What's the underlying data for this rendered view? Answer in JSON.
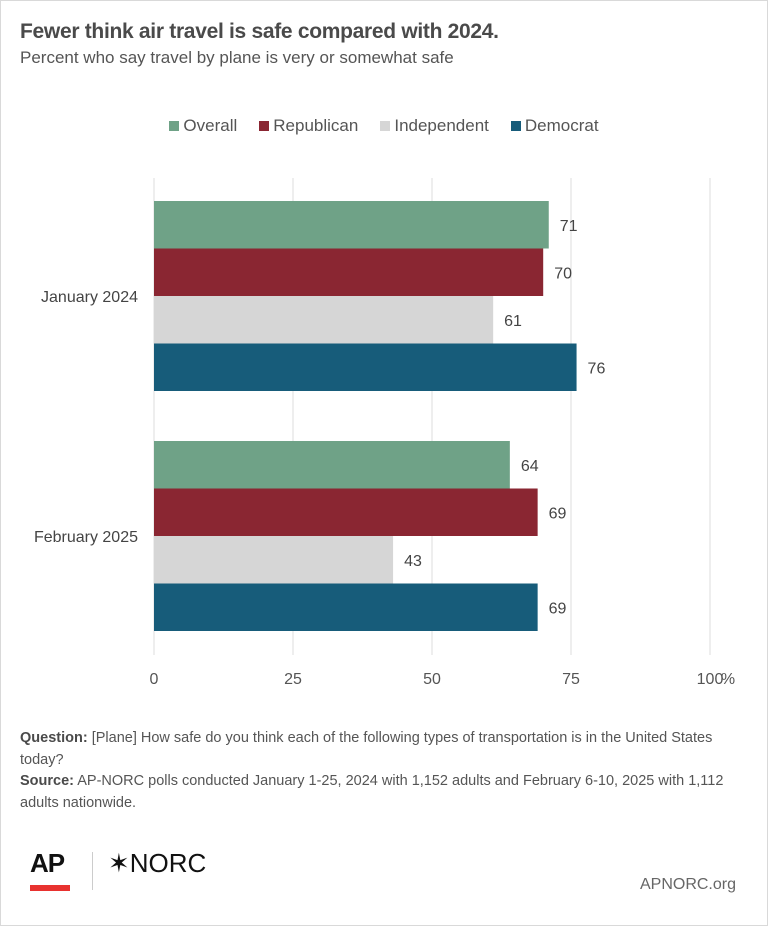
{
  "title": "Fewer think air travel is safe compared with 2024.",
  "subtitle": "Percent who say travel by plane is very or somewhat safe",
  "chart_data": {
    "type": "bar",
    "orientation": "horizontal",
    "categories": [
      "January 2024",
      "February 2025"
    ],
    "series": [
      {
        "name": "Overall",
        "color": "#6fa287",
        "values": [
          71,
          64
        ]
      },
      {
        "name": "Republican",
        "color": "#8a2632",
        "values": [
          70,
          69
        ]
      },
      {
        "name": "Independent",
        "color": "#d6d6d6",
        "values": [
          61,
          43
        ]
      },
      {
        "name": "Democrat",
        "color": "#175c7a",
        "values": [
          76,
          69
        ]
      }
    ],
    "xlim": [
      0,
      100
    ],
    "xticks": [
      "0",
      "25",
      "50",
      "75",
      "100"
    ],
    "xunit": "%",
    "grid": true,
    "legend": "top",
    "data_labels": true
  },
  "notes": {
    "question_label": "Question:",
    "question": "[Plane] How safe do you think each of the following types of transportation is in the United States today?",
    "source_label": "Source:",
    "source": "AP-NORC polls conducted January 1-25, 2024 with 1,152 adults and February 6-10, 2025 with 1,112 adults nationwide."
  },
  "footer": {
    "ap_logo": "AP",
    "norc_logo": "✶NORC",
    "site": "APNORC.org"
  }
}
